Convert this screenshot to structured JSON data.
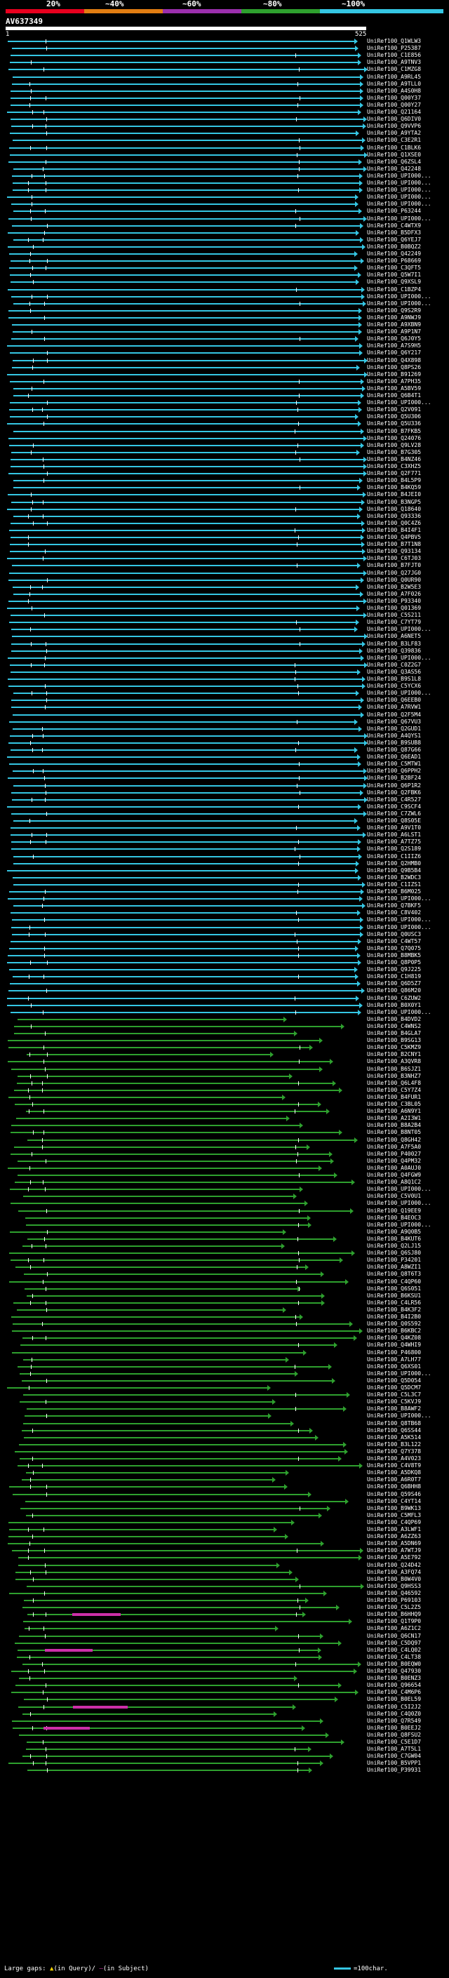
{
  "scale": {
    "labels": [
      "20%",
      "~40%",
      "~60%",
      "~80%",
      "~100%"
    ],
    "colors": [
      "#e8001e",
      "#e27d12",
      "#9b2fad",
      "#2ea02e",
      "#35c6e3"
    ]
  },
  "query": {
    "title": "AV637349",
    "start": "1",
    "end": "525"
  },
  "hits": [
    "UniRef100_Q1WLW3",
    "UniRef100_P25387",
    "UniRef100_C1E856",
    "UniRef100_A9TNV3",
    "UniRef100_C1MZG8",
    "UniRef100_A9RL45",
    "UniRef100_A9TLL0",
    "UniRef100_A4S0H8",
    "UniRef100_Q00Y37",
    "UniRef100_Q00Y27",
    "UniRef100_Q21164",
    "UniRef100_Q6DIV0",
    "UniRef100_Q9VVP6",
    "UniRef100_A9YTA2",
    "UniRef100_C3E2R1",
    "UniRef100_C1BLK6",
    "UniRef100_Q1XSE0",
    "UniRef100_Q6ZSL4",
    "UniRef100_Q42248",
    "UniRef100_UPI000...",
    "UniRef100_UPI000...",
    "UniRef100_UPI000...",
    "UniRef100_UPI000...",
    "UniRef100_UPI000...",
    "UniRef100_P63244",
    "UniRef100_UPI000...",
    "UniRef100_C4WTX9",
    "UniRef100_B5DFX3",
    "UniRef100_Q6YEJ7",
    "UniRef100_B0BQZ2",
    "UniRef100_Q42249",
    "UniRef100_P68669",
    "UniRef100_C3QFT5",
    "UniRef100_Q5W7I1",
    "UniRef100_Q9XSL9",
    "UniRef100_C1BZP4",
    "UniRef100_UPI000...",
    "UniRef100_UPI000...",
    "UniRef100_Q9S2R9",
    "UniRef100_A9NWJ9",
    "UniRef100_A9XBN9",
    "UniRef100_A9P1N7",
    "UniRef100_Q6J0Y5",
    "UniRef100_A7S9H5",
    "UniRef100_Q6Y217",
    "UniRef100_Q4X898",
    "UniRef100_Q8PS26",
    "UniRef100_B91269",
    "UniRef100_A7PH35",
    "UniRef100_A5BV59",
    "UniRef100_Q6B4T1",
    "UniRef100_UPI000...",
    "UniRef100_Q2V091",
    "UniRef100_Q5U306",
    "UniRef100_Q5U336",
    "UniRef100_B7FKB5",
    "UniRef100_Q24076",
    "UniRef100_Q9LV28",
    "UniRef100_B7G305",
    "UniRef100_B4NZ46",
    "UniRef100_C3XHZ5",
    "UniRef100_Q2F771",
    "UniRef100_B4L5P9",
    "UniRef100_B4KQ59",
    "UniRef100_B4JEI0",
    "UniRef100_B3NGP5",
    "UniRef100_Q18640",
    "UniRef100_Q93336",
    "UniRef100_Q0C4Z6",
    "UniRef100_B4I4F1",
    "UniRef100_Q4PBV5",
    "UniRef100_B7T1N8",
    "UniRef100_Q93134",
    "UniRef100_C6TJ03",
    "UniRef100_B7FJT0",
    "UniRef100_Q27JG0",
    "UniRef100_Q0UR90",
    "UniRef100_B2W5E3",
    "UniRef100_A7F026",
    "UniRef100_P93340",
    "UniRef100_Q01369",
    "UniRef100_C5S211",
    "UniRef100_C7YT79",
    "UniRef100_UPI000...",
    "UniRef100_A6NET5",
    "UniRef100_B3LF83",
    "UniRef100_Q39836",
    "UniRef100_UPI000...",
    "UniRef100_C0Z2G7",
    "UniRef100_Q3AS56",
    "UniRef100_B9S1L8",
    "UniRef100_C5YCX6",
    "UniRef100_UPI000...",
    "UniRef100_Q6EEB0",
    "UniRef100_A7RVW1",
    "UniRef100_Q2F5M4",
    "UniRef100_Q67VU3",
    "UniRef100_Q2GUD1",
    "UniRef100_A4QYS1",
    "UniRef100_B9SUB8",
    "UniRef100_Q87G66",
    "UniRef100_Q6EAD1",
    "UniRef100_C5MTW1",
    "UniRef100_Q6PPH2",
    "UniRef100_B2BF24",
    "UniRef100_Q6P1R2",
    "UniRef100_Q2FBK6",
    "UniRef100_C4R527",
    "UniRef100_C9SCF4",
    "UniRef100_C7ZWL6",
    "UniRef100_Q8S05E",
    "UniRef100_A9V1T0",
    "UniRef100_A6LST1",
    "UniRef100_A7TZ75",
    "UniRef100_Q2S189",
    "UniRef100_C1IIZ6",
    "UniRef100_Q2HMB0",
    "UniRef100_Q9B5B4",
    "UniRef100_B2WDC3",
    "UniRef100_C1IZS1",
    "UniRef100_B6M025",
    "UniRef100_UPI000...",
    "UniRef100_Q7BKF5",
    "UniRef100_C8V402",
    "UniRef100_UPI000...",
    "UniRef100_UPI000...",
    "UniRef100_Q0USC3",
    "UniRef100_C4WT57",
    "UniRef100_Q7Q075",
    "UniRef100_B8MBK5",
    "UniRef100_Q8P0P5",
    "UniRef100_Q9J225",
    "UniRef100_C1H819",
    "UniRef100_Q6D5Z7",
    "UniRef100_Q86M20",
    "UniRef100_C6ZUW2",
    "UniRef100_B0X0Y1",
    "UniRef100_UPI000...",
    "UniRef100_B4DVD2",
    "UniRef100_C4WNS2",
    "UniRef100_B4GLA7",
    "UniRef100_B9SG13",
    "UniRef100_C5KMZ9",
    "UniRef100_B2CNY1",
    "UniRef100_A3QVR8",
    "UniRef100_B6SJZ1",
    "UniRef100_B3NHZ7",
    "UniRef100_Q6L4F8",
    "UniRef100_C5Y7Z4",
    "UniRef100_B4FUR1",
    "UniRef100_C3BL05",
    "UniRef100_A6N9Y1",
    "UniRef100_A2I3W1",
    "UniRef100_B8A2B4",
    "UniRef100_B8NT05",
    "UniRef100_Q8GH42",
    "UniRef100_A7F5A0",
    "UniRef100_P40027",
    "UniRef100_Q4PM32",
    "UniRef100_A0AUJ0",
    "UniRef100_Q4FGW9",
    "UniRef100_A8Q1C2",
    "UniRef100_UPI000...",
    "UniRef100_C5V0U1",
    "UniRef100_UPI000...",
    "UniRef100_Q19EE9",
    "UniRef100_B4EOC3",
    "UniRef100_UPI000...",
    "UniRef100_A9Q0B5",
    "UniRef100_B4KUT6",
    "UniRef100_Q2LJ15",
    "UniRef100_Q6SJ80",
    "UniRef100_P34201",
    "UniRef100_A8WZI1",
    "UniRef100_Q8T6T3",
    "UniRef100_C4QP60",
    "UniRef100_Q6S051",
    "UniRef100_B6KSU1",
    "UniRef100_C4LR56",
    "UniRef100_B4K3F2",
    "UniRef100_B4I2B0",
    "UniRef100_Q0S592",
    "UniRef100_B6KBC2",
    "UniRef100_Q4KZ08",
    "UniRef100_Q4WHI9",
    "UniRef100_P46800",
    "UniRef100_A7LH77",
    "UniRef100_Q6XS01",
    "UniRef100_UPI000...",
    "UniRef100_Q5D054",
    "UniRef100_Q5DCM7",
    "UniRef100_C5L3C7",
    "UniRef100_C5KVJ9",
    "UniRef100_B8AWF2",
    "UniRef100_UPI000...",
    "UniRef100_Q8TB68",
    "UniRef100_Q6SS44",
    "UniRef100_A5K514",
    "UniRef100_B3L122",
    "UniRef100_Q7Y378",
    "UniRef100_A4V023",
    "UniRef100_C4V8T9",
    "UniRef100_A5DKQ8",
    "UniRef100_A6R0T7",
    "UniRef100_Q6BHH8",
    "UniRef100_Q59S46",
    "UniRef100_C4YT14",
    "UniRef100_B9WK13",
    "UniRef100_C5MFL3",
    "UniRef100_C4QP69",
    "UniRef100_A3LWF1",
    "UniRef100_A6ZZ63",
    "UniRef100_A5DN69",
    "UniRef100_A7WTJ9",
    "UniRef100_A5E792",
    "UniRef100_Q24D42",
    "UniRef100_A3FQ74",
    "UniRef100_B0W4V0",
    "UniRef100_Q9HSS3",
    "UniRef100_Q46592",
    "UniRef100_P69103",
    "UniRef100_C5L2Z5",
    "UniRef100_B6HHQ9",
    "UniRef100_Q1T9P0",
    "UniRef100_A6Z1C2",
    "UniRef100_Q6CN17",
    "UniRef100_C5DQ97",
    "UniRef100_C4LQ02",
    "UniRef100_C4LT38",
    "UniRef100_B0EQW0",
    "UniRef100_Q47930",
    "UniRef100_B0ENZ3",
    "UniRef100_Q96654",
    "UniRef100_C4M6P6",
    "UniRef100_B0EL59",
    "UniRef100_C5I2J2",
    "UniRef100_C4Q0Z0",
    "UniRef100_Q7R549",
    "UniRef100_B0EEJ2",
    "UniRef100_Q8FSU2",
    "UniRef100_C5E1D7",
    "UniRef100_A7T5L1",
    "UniRef100_C7GW04",
    "UniRef100_B5VPP1",
    "UniRef100_P39931"
  ],
  "footer": {
    "gaps_label": "Large gaps:",
    "in_query": "(in Query)",
    "in_subject": "(in Subject)",
    "scale_note": "=100char."
  }
}
